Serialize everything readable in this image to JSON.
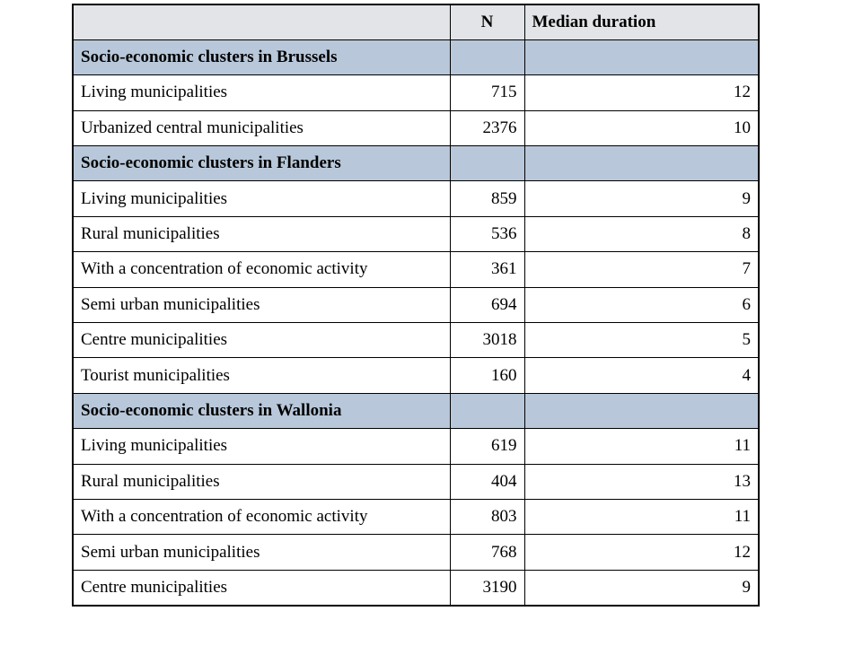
{
  "header": {
    "col1": "",
    "col2": "N",
    "col3": "Median duration"
  },
  "rows": [
    {
      "type": "group",
      "label": "Socio-economic clusters in Brussels",
      "n": "",
      "median": ""
    },
    {
      "type": "row",
      "label": "Living municipalities",
      "n": "715",
      "median": "12"
    },
    {
      "type": "row",
      "label": "Urbanized central municipalities",
      "n": "2376",
      "median": "10"
    },
    {
      "type": "group",
      "label": "Socio-economic clusters in Flanders",
      "n": "",
      "median": ""
    },
    {
      "type": "row",
      "label": "Living municipalities",
      "n": "859",
      "median": "9"
    },
    {
      "type": "row",
      "label": "Rural municipalities",
      "n": "536",
      "median": "8"
    },
    {
      "type": "row",
      "label": "With a concentration of economic activity",
      "n": "361",
      "median": "7"
    },
    {
      "type": "row",
      "label": "Semi urban municipalities",
      "n": "694",
      "median": "6"
    },
    {
      "type": "row",
      "label": "Centre municipalities",
      "n": "3018",
      "median": "5"
    },
    {
      "type": "row",
      "label": "Tourist municipalities",
      "n": "160",
      "median": "4"
    },
    {
      "type": "group",
      "label": "Socio-economic clusters in Wallonia",
      "n": "",
      "median": ""
    },
    {
      "type": "row",
      "label": "Living municipalities",
      "n": "619",
      "median": "11"
    },
    {
      "type": "row",
      "label": "Rural municipalities",
      "n": "404",
      "median": "13"
    },
    {
      "type": "row",
      "label": "With a concentration of economic activity",
      "n": "803",
      "median": "11"
    },
    {
      "type": "row",
      "label": "Semi urban municipalities",
      "n": "768",
      "median": "12"
    },
    {
      "type": "row",
      "label": "Centre municipalities",
      "n": "3190",
      "median": "9"
    }
  ],
  "colors": {
    "header_bg": "#e2e4e7",
    "group_bg": "#b8c8da",
    "border": "#000000"
  }
}
